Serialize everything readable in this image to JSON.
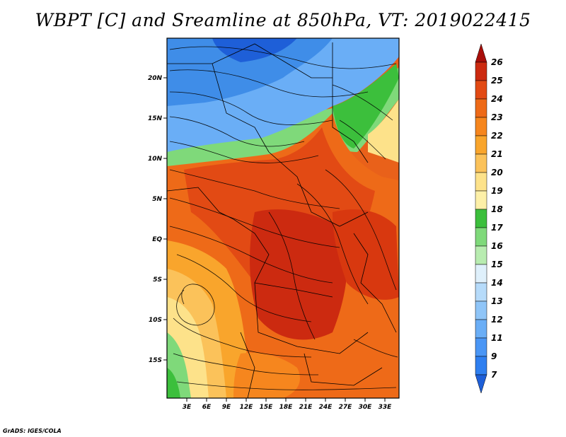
{
  "title": "WBPT [C] and Sreamline at 850hPa, VT: 2019022415",
  "credit": "GrADS: IGES/COLA",
  "map": {
    "lat_ticks": [
      "20N",
      "15N",
      "10N",
      "5N",
      "EQ",
      "5S",
      "10S",
      "15S"
    ],
    "lon_ticks": [
      "3E",
      "6E",
      "9E",
      "12E",
      "15E",
      "18E",
      "21E",
      "24E",
      "27E",
      "30E",
      "33E"
    ]
  },
  "colorbar": {
    "levels": [
      "7",
      "9",
      "11",
      "12",
      "13",
      "14",
      "15",
      "16",
      "17",
      "18",
      "19",
      "20",
      "21",
      "22",
      "23",
      "24",
      "25",
      "26"
    ],
    "colors": [
      "#1e5fd8",
      "#2f7ff0",
      "#4a96f5",
      "#6aaef6",
      "#8fc5f8",
      "#b6dbfa",
      "#dff0fb",
      "#b8ecb0",
      "#7fd97a",
      "#3cbf3c",
      "#fdf0a8",
      "#fde28a",
      "#fbc25a",
      "#f9a52c",
      "#f6861e",
      "#ee6a18",
      "#e24a14",
      "#cc2a10",
      "#a80e0a"
    ]
  }
}
